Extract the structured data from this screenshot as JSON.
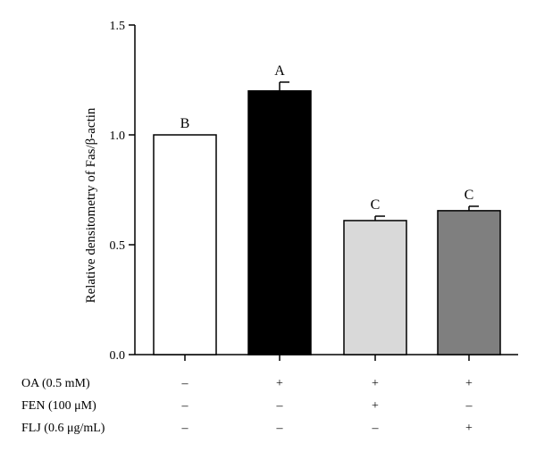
{
  "chart_data": {
    "type": "bar",
    "title": "",
    "ylabel": "Relative densitometry of Fas/β-actin",
    "xlabel": "",
    "ylim": [
      0,
      1.5
    ],
    "yticks": [
      0.0,
      0.5,
      1.0,
      1.5
    ],
    "ytick_labels": [
      "0.0",
      "0.5",
      "1.0",
      "1.5"
    ],
    "grid": false,
    "bars": [
      {
        "value": 1.0,
        "error": 0.0,
        "significance": "B",
        "fill": "#ffffff"
      },
      {
        "value": 1.2,
        "error": 0.04,
        "significance": "A",
        "fill": "#000000"
      },
      {
        "value": 0.61,
        "error": 0.02,
        "significance": "C",
        "fill": "#d9d9d9"
      },
      {
        "value": 0.655,
        "error": 0.02,
        "significance": "C",
        "fill": "#7f7f7f"
      }
    ],
    "conditions": [
      {
        "label": "OA (0.5 mM)",
        "signs": [
          "–",
          "+",
          "+",
          "+"
        ]
      },
      {
        "label": "FEN (100 μM)",
        "signs": [
          "–",
          "–",
          "+",
          "–"
        ]
      },
      {
        "label": "FLJ (0.6 μg/mL)",
        "signs": [
          "–",
          "–",
          "–",
          "+"
        ]
      }
    ]
  }
}
